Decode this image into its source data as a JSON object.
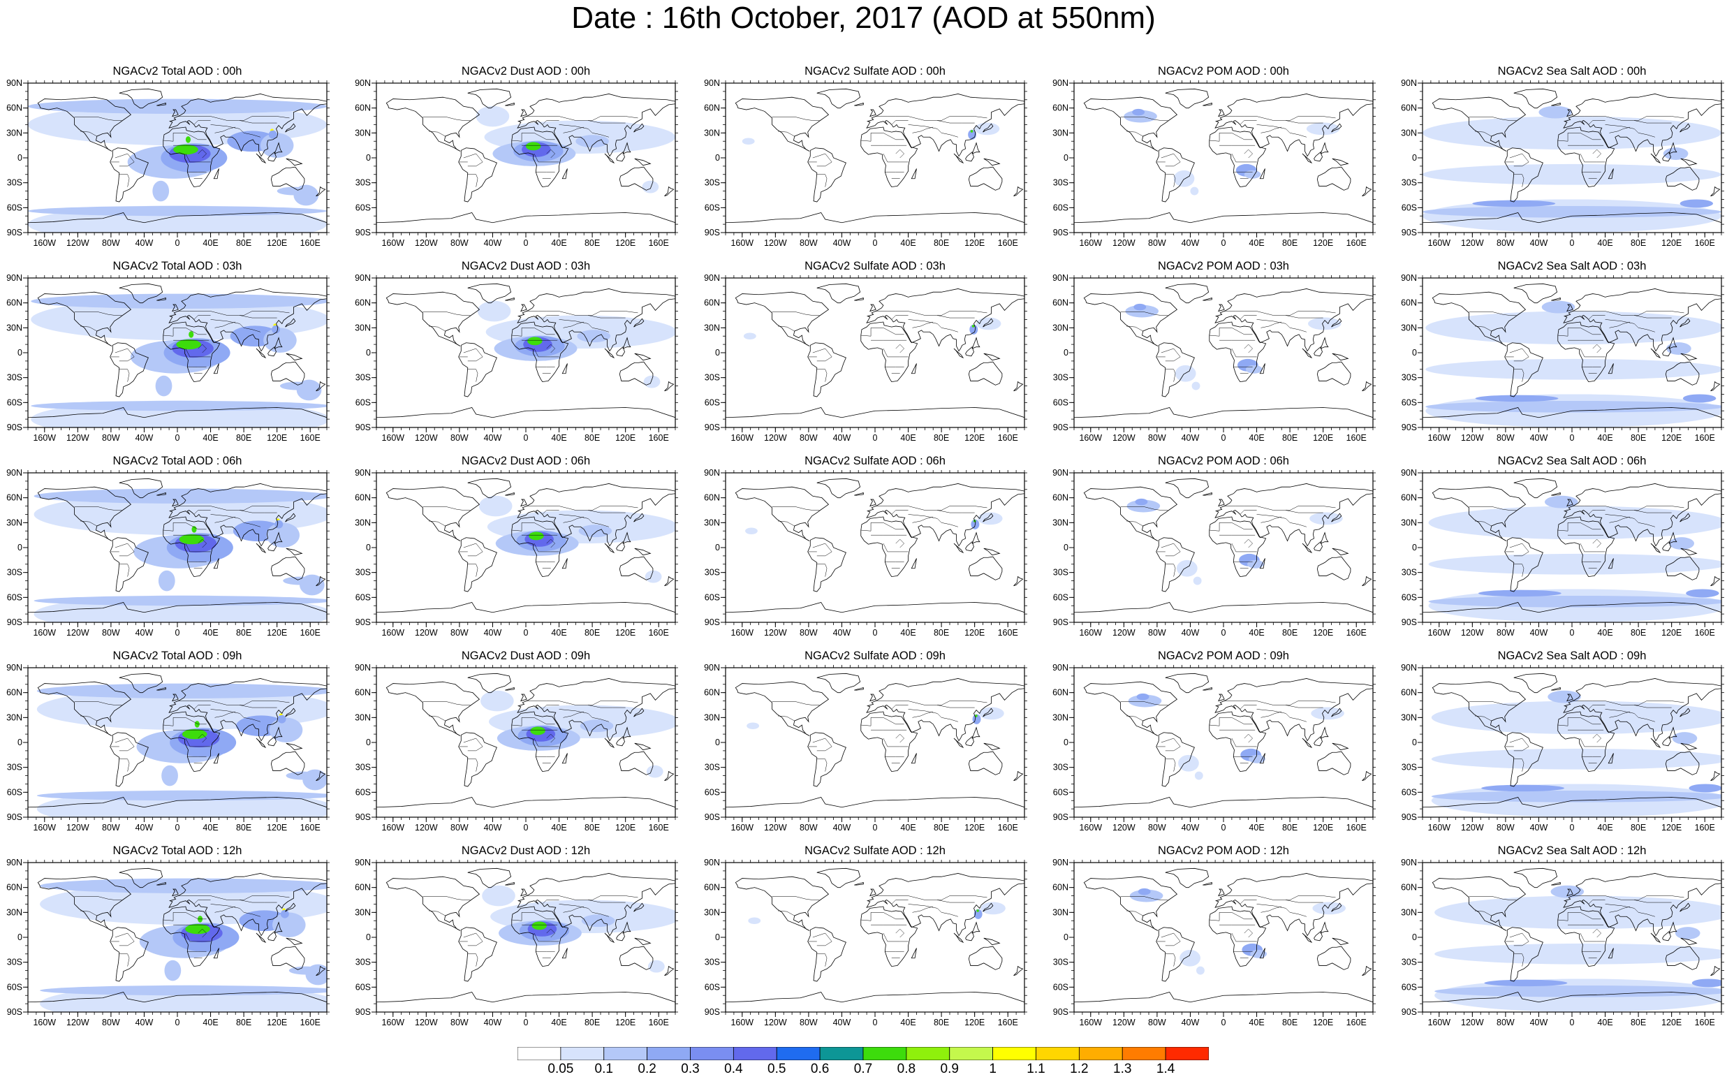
{
  "title": "Date : 16th October, 2017 (AOD at 550nm)",
  "lat_ticks": [
    "90N",
    "60N",
    "30N",
    "0",
    "30S",
    "60S",
    "90S"
  ],
  "lon_ticks": [
    "160W",
    "120W",
    "80W",
    "40W",
    "0",
    "40E",
    "80E",
    "120E",
    "160E"
  ],
  "panels": [
    [
      {
        "title": "NGACv2 Total AOD : 00h",
        "type": "total"
      },
      {
        "title": "NGACv2 Dust AOD : 00h",
        "type": "dust"
      },
      {
        "title": "NGACv2 Sulfate AOD : 00h",
        "type": "sulfate"
      },
      {
        "title": "NGACv2 POM AOD : 00h",
        "type": "pom"
      },
      {
        "title": "NGACv2 Sea Salt AOD : 00h",
        "type": "seasalt"
      }
    ],
    [
      {
        "title": "NGACv2 Total AOD : 03h",
        "type": "total"
      },
      {
        "title": "NGACv2 Dust AOD : 03h",
        "type": "dust"
      },
      {
        "title": "NGACv2 Sulfate AOD : 03h",
        "type": "sulfate"
      },
      {
        "title": "NGACv2 POM AOD : 03h",
        "type": "pom"
      },
      {
        "title": "NGACv2 Sea Salt AOD : 03h",
        "type": "seasalt"
      }
    ],
    [
      {
        "title": "NGACv2 Total AOD : 06h",
        "type": "total"
      },
      {
        "title": "NGACv2 Dust AOD : 06h",
        "type": "dust"
      },
      {
        "title": "NGACv2 Sulfate AOD : 06h",
        "type": "sulfate"
      },
      {
        "title": "NGACv2 POM AOD : 06h",
        "type": "pom"
      },
      {
        "title": "NGACv2 Sea Salt AOD : 06h",
        "type": "seasalt"
      }
    ],
    [
      {
        "title": "NGACv2 Total AOD : 09h",
        "type": "total"
      },
      {
        "title": "NGACv2 Dust AOD : 09h",
        "type": "dust"
      },
      {
        "title": "NGACv2 Sulfate AOD : 09h",
        "type": "sulfate"
      },
      {
        "title": "NGACv2 POM AOD : 09h",
        "type": "pom"
      },
      {
        "title": "NGACv2 Sea Salt  AOD : 09h",
        "type": "seasalt"
      }
    ],
    [
      {
        "title": "NGACv2 Total AOD  : 12h",
        "type": "total"
      },
      {
        "title": "NGACv2 Dust AOD : 12h",
        "type": "dust"
      },
      {
        "title": "NGACv2 Sulfate AOD : 12h",
        "type": "sulfate"
      },
      {
        "title": "NGACv2 POM  AOD : 12h",
        "type": "pom"
      },
      {
        "title": "NGACv2 Sea Salt  AOD : 12h",
        "type": "seasalt"
      }
    ]
  ],
  "legend": {
    "labels": [
      "0.05",
      "0.1",
      "0.2",
      "0.3",
      "0.4",
      "0.5",
      "0.6",
      "0.7",
      "0.8",
      "0.9",
      "1",
      "1.1",
      "1.2",
      "1.3",
      "1.4"
    ],
    "colors": [
      "#ffffff",
      "#d7e3fc",
      "#b4c8f8",
      "#8fa9f4",
      "#7a8ef1",
      "#6269ec",
      "#1f6cf0",
      "#0d9696",
      "#3ddc0c",
      "#8ff00c",
      "#c4f84c",
      "#ffff00",
      "#ffd600",
      "#ffad00",
      "#ff7c00",
      "#ff2a00"
    ]
  },
  "map_colors": {
    "land_outline": "#000000",
    "frame": "#000000",
    "light_blue": "#d7e3fc",
    "mid_blue": "#b4c8f8",
    "blue": "#8fa9f4",
    "deep_blue": "#6269ec",
    "green": "#3ddc0c",
    "yellow": "#ffff00"
  }
}
